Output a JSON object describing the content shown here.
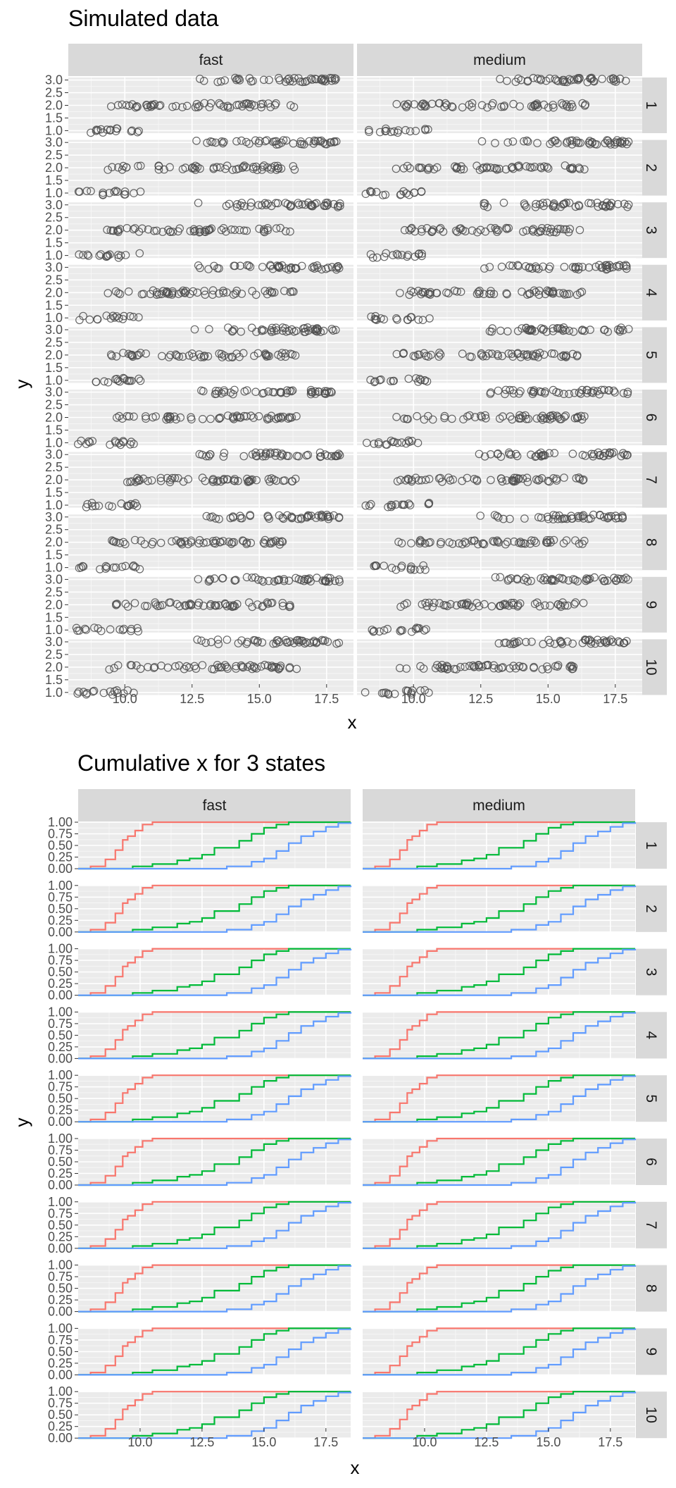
{
  "chart_data": [
    {
      "type": "scatter",
      "title": "Simulated data",
      "xlabel": "x",
      "ylabel": "y",
      "facet_cols": [
        "fast",
        "medium"
      ],
      "facet_rows": [
        "1",
        "2",
        "3",
        "4",
        "5",
        "6",
        "7",
        "8",
        "9",
        "10"
      ],
      "xlim": [
        7.9,
        18.5
      ],
      "ylim": [
        0.9,
        3.1
      ],
      "xticks": [
        10.0,
        12.5,
        15.0,
        17.5
      ],
      "xtick_labels": [
        "10.0",
        "12.5",
        "15.0",
        "17.5"
      ],
      "yticks": [
        1.0,
        1.5,
        2.0,
        2.5,
        3.0
      ],
      "ytick_labels": [
        "1.0",
        "1.5",
        "2.0",
        "2.5",
        "3.0"
      ],
      "grid": true,
      "point_shape": "open-circle",
      "point_color": "#4d4d4d",
      "note": "Points are jittered simulated observations at levels y=1, 2, 3; x roughly 8-10.5 for y=1, 9.5-16 for y=2, 12.5-18 for y=3 in every panel."
    },
    {
      "type": "line",
      "step": true,
      "title": "Cumulative x for 3 states",
      "xlabel": "x",
      "ylabel": "y",
      "facet_cols": [
        "fast",
        "medium"
      ],
      "facet_rows": [
        "1",
        "2",
        "3",
        "4",
        "5",
        "6",
        "7",
        "8",
        "9",
        "10"
      ],
      "xlim": [
        7.5,
        18.5
      ],
      "ylim": [
        0.0,
        1.0
      ],
      "xticks": [
        10.0,
        12.5,
        15.0,
        17.5
      ],
      "xtick_labels": [
        "10.0",
        "12.5",
        "15.0",
        "17.5"
      ],
      "yticks": [
        0.0,
        0.25,
        0.5,
        0.75,
        1.0
      ],
      "ytick_labels": [
        "0.00",
        "0.25",
        "0.50",
        "0.75",
        "1.00"
      ],
      "grid": true,
      "series": [
        {
          "color": "#F8766D",
          "x": [
            7.5,
            8.0,
            8.6,
            9.0,
            9.3,
            9.5,
            9.8,
            10.1,
            10.5,
            18.5
          ],
          "y": [
            0.0,
            0.05,
            0.2,
            0.4,
            0.62,
            0.7,
            0.82,
            0.95,
            1.0,
            1.0
          ]
        },
        {
          "color": "#00BA38",
          "x": [
            7.5,
            9.0,
            9.7,
            10.5,
            11.5,
            12.0,
            12.5,
            13.0,
            14.0,
            14.5,
            15.0,
            15.5,
            16.0,
            18.5
          ],
          "y": [
            0.0,
            0.0,
            0.05,
            0.1,
            0.18,
            0.22,
            0.3,
            0.45,
            0.6,
            0.75,
            0.88,
            0.95,
            1.0,
            1.0
          ]
        },
        {
          "color": "#619CFF",
          "x": [
            7.5,
            12.5,
            13.5,
            14.5,
            15.0,
            15.5,
            16.0,
            16.5,
            17.0,
            17.5,
            18.0,
            18.5
          ],
          "y": [
            0.0,
            0.0,
            0.05,
            0.15,
            0.22,
            0.38,
            0.55,
            0.7,
            0.8,
            0.9,
            0.98,
            1.0
          ]
        }
      ]
    }
  ]
}
